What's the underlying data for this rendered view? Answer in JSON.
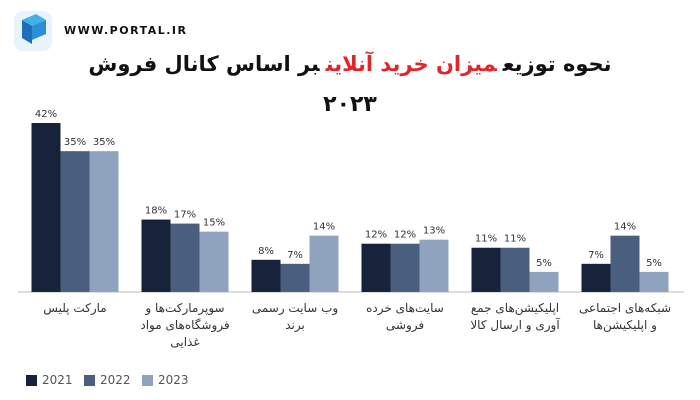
{
  "logo_text": "WWW.PORTAL.IR",
  "chart_data": {
    "type": "bar",
    "title": [
      "نحوه توزیع",
      "میزان خرید آنلاین",
      "بر اساس کانال فروش"
    ],
    "title_colors": [
      "#111111",
      "#e0252b",
      "#111111"
    ],
    "subtitle": "۲۰۲۳",
    "categories": [
      "مارکت پلیس",
      "سوپرمارکت‌ها و فروشگاه‌های مواد غذایی",
      "وب سایت رسمی برند",
      "سایت‌های خرده فروشی",
      "اپلیکیشن‌های جمع آوری و ارسال کالا",
      "شبکه‌های اجتماعی و اپلیکیشن‌ها"
    ],
    "series": [
      {
        "name": "2021",
        "color": "#16233a",
        "values": [
          42,
          18,
          8,
          12,
          11,
          7
        ],
        "value_labels": [
          "42%",
          "18%",
          "8%",
          "12%",
          "11%",
          "7%"
        ]
      },
      {
        "name": "2022",
        "color": "#4a5f7e",
        "values": [
          35,
          17,
          7,
          12,
          11,
          14
        ],
        "value_labels": [
          "35%",
          "17%",
          "7%",
          "12%",
          "11%",
          "14%"
        ]
      },
      {
        "name": "2023",
        "color": "#8fa3bf",
        "values": [
          35,
          15,
          14,
          13,
          5,
          5
        ],
        "value_labels": [
          "35%",
          "15%",
          "14%",
          "13%",
          "5%",
          "5%"
        ]
      }
    ]
  }
}
